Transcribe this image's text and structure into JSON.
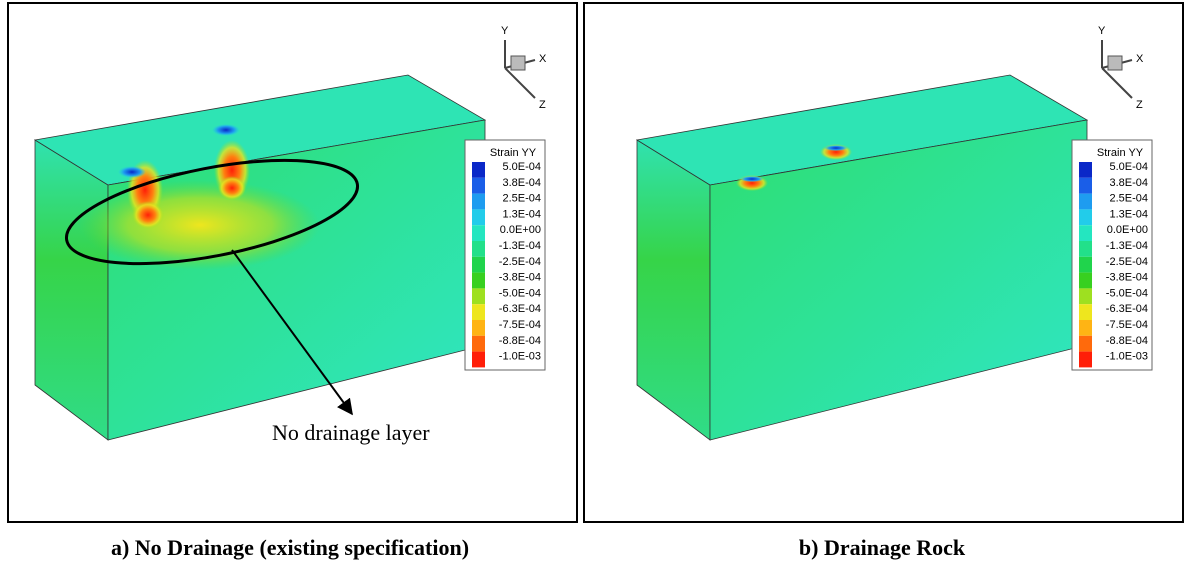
{
  "panels": [
    {
      "caption": "a) No Drainage (existing specification)",
      "axes": {
        "y": "Y",
        "x": "X",
        "z": "Z"
      },
      "legend": {
        "title": "Strain YY",
        "labels": [
          "5.0E-04",
          "3.8E-04",
          "2.5E-04",
          "1.3E-04",
          "0.0E+00",
          "-1.3E-04",
          "-2.5E-04",
          "-3.8E-04",
          "-5.0E-04",
          "-6.3E-04",
          "-7.5E-04",
          "-8.8E-04",
          "-1.0E-03"
        ],
        "colors": [
          "#0a28c8",
          "#1a5ee8",
          "#1e9cf0",
          "#22ccea",
          "#24e6c0",
          "#22e08a",
          "#20d44c",
          "#38d020",
          "#9ee020",
          "#eee61e",
          "#ffb414",
          "#ff6a0c",
          "#ff1e08"
        ]
      },
      "annotation": "No drainage layer"
    },
    {
      "caption": "b) Drainage Rock",
      "axes": {
        "y": "Y",
        "x": "X",
        "z": "Z"
      },
      "legend": {
        "title": "Strain YY",
        "labels": [
          "5.0E-04",
          "3.8E-04",
          "2.5E-04",
          "1.3E-04",
          "0.0E+00",
          "-1.3E-04",
          "-2.5E-04",
          "-3.8E-04",
          "-5.0E-04",
          "-6.3E-04",
          "-7.5E-04",
          "-8.8E-04",
          "-1.0E-03"
        ],
        "colors": [
          "#0a28c8",
          "#1a5ee8",
          "#1e9cf0",
          "#22ccea",
          "#24e6c0",
          "#22e08a",
          "#20d44c",
          "#38d020",
          "#9ee020",
          "#eee61e",
          "#ffb414",
          "#ff6a0c",
          "#ff1e08"
        ]
      }
    }
  ]
}
